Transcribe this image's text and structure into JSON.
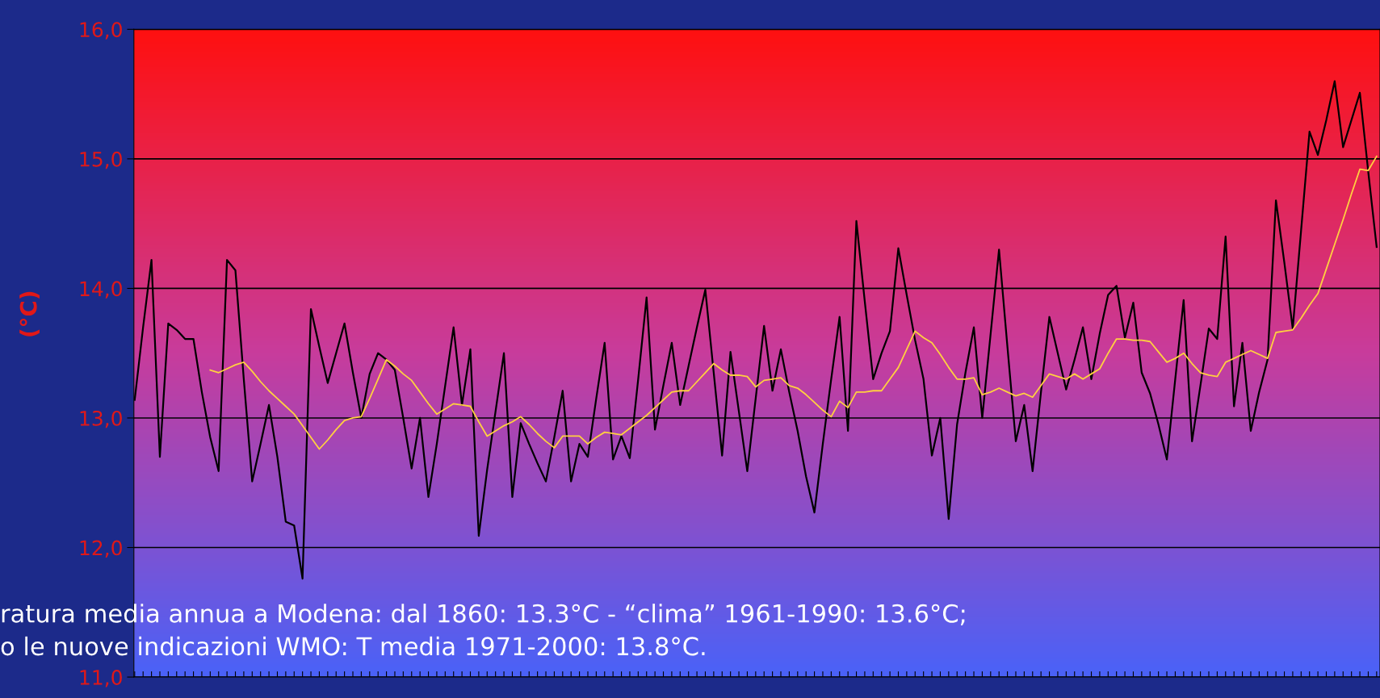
{
  "chart_data": {
    "type": "line",
    "ylabel": "(°C)",
    "categories": [
      null,
      null,
      null,
      null,
      null,
      null,
      null,
      null,
      null,
      null,
      null,
      null,
      null,
      null,
      null,
      null,
      null,
      null,
      null,
      null,
      null,
      null,
      null,
      null,
      null,
      null,
      null,
      null,
      null,
      null,
      null,
      null,
      null,
      null,
      null,
      null,
      null,
      null,
      null,
      null,
      null,
      null,
      null,
      null,
      null,
      null,
      null,
      null,
      null,
      null,
      null,
      null,
      null,
      null,
      null,
      null,
      null,
      null,
      null,
      null,
      null,
      null,
      null,
      null,
      null,
      null,
      null,
      null,
      null,
      null,
      null,
      null,
      null,
      null,
      null,
      null,
      null,
      null,
      null,
      null,
      null,
      null,
      null,
      null,
      null,
      null,
      null,
      null,
      null,
      null,
      null,
      null,
      null,
      null,
      null,
      null,
      null,
      null,
      null,
      null,
      null,
      null,
      null,
      null,
      null,
      null,
      null,
      null,
      null,
      null,
      null,
      null,
      null,
      null,
      null,
      null,
      null,
      null,
      null,
      null,
      null,
      null,
      null,
      null,
      null,
      null,
      null,
      null,
      null,
      null,
      null,
      null,
      null,
      null,
      null,
      null,
      null,
      null,
      null,
      null,
      null,
      null,
      null,
      null,
      null,
      null,
      null,
      null,
      null
    ],
    "series": [
      {
        "color": "#000000",
        "values": [
          13.14,
          13.7,
          14.22,
          12.7,
          13.73,
          13.68,
          13.61,
          13.61,
          13.2,
          12.85,
          12.59,
          14.22,
          14.14,
          13.3,
          12.51,
          12.8,
          13.1,
          12.7,
          12.2,
          12.17,
          11.76,
          13.84,
          13.55,
          13.27,
          13.5,
          13.73,
          13.35,
          13.0,
          13.34,
          13.5,
          13.45,
          13.37,
          13.0,
          12.61,
          13.0,
          12.39,
          12.8,
          13.25,
          13.7,
          13.1,
          13.53,
          12.09,
          12.6,
          13.05,
          13.5,
          12.39,
          12.96,
          12.8,
          12.65,
          12.51,
          12.85,
          13.21,
          12.51,
          12.8,
          12.7,
          13.15,
          13.58,
          12.68,
          12.86,
          12.69,
          13.3,
          13.93,
          12.91,
          13.25,
          13.58,
          13.1,
          13.4,
          13.7,
          13.99,
          13.35,
          12.71,
          13.51,
          13.05,
          12.59,
          13.15,
          13.71,
          13.21,
          13.53,
          13.2,
          12.9,
          12.55,
          12.27,
          12.8,
          13.3,
          13.78,
          12.9,
          14.52,
          13.9,
          13.3,
          13.5,
          13.67,
          14.31,
          13.95,
          13.6,
          13.3,
          12.71,
          13.0,
          12.22,
          12.95,
          13.35,
          13.7,
          13.0,
          13.65,
          14.3,
          13.55,
          12.82,
          13.1,
          12.59,
          13.2,
          13.78,
          13.5,
          13.22,
          13.45,
          13.7,
          13.3,
          13.65,
          13.95,
          14.02,
          13.62,
          13.89,
          13.35,
          13.19,
          12.95,
          12.68,
          13.3,
          13.91,
          12.82,
          13.25,
          13.69,
          13.61,
          14.4,
          13.09,
          13.58,
          12.9,
          13.2,
          13.45,
          14.68,
          14.2,
          13.69,
          14.45,
          15.21,
          15.03,
          15.3,
          15.6,
          15.09,
          15.3,
          15.51,
          14.9,
          14.32
        ]
      },
      {
        "color": "#ffd040",
        "values": [
          null,
          null,
          null,
          null,
          null,
          null,
          null,
          null,
          null,
          13.37,
          13.35,
          13.38,
          13.41,
          13.43,
          13.36,
          13.28,
          13.21,
          13.15,
          13.09,
          13.03,
          12.94,
          12.85,
          12.76,
          12.83,
          12.91,
          12.98,
          13.0,
          13.01,
          13.15,
          13.3,
          13.45,
          13.4,
          13.34,
          13.29,
          13.2,
          13.11,
          13.03,
          13.07,
          13.11,
          13.1,
          13.09,
          12.97,
          12.86,
          12.9,
          12.94,
          12.97,
          13.01,
          12.95,
          12.88,
          12.82,
          12.77,
          12.86,
          12.86,
          12.86,
          12.8,
          12.85,
          12.89,
          12.88,
          12.87,
          12.92,
          12.97,
          13.02,
          13.08,
          13.14,
          13.2,
          13.21,
          13.21,
          13.28,
          13.35,
          13.42,
          13.37,
          13.33,
          13.33,
          13.32,
          13.24,
          13.29,
          13.3,
          13.31,
          13.25,
          13.23,
          13.18,
          13.12,
          13.06,
          13.01,
          13.13,
          13.08,
          13.2,
          13.2,
          13.21,
          13.21,
          13.3,
          13.39,
          13.53,
          13.67,
          13.62,
          13.58,
          13.49,
          13.39,
          13.3,
          13.3,
          13.31,
          13.18,
          13.2,
          13.23,
          13.2,
          13.17,
          13.19,
          13.16,
          13.25,
          13.34,
          13.32,
          13.3,
          13.34,
          13.3,
          13.34,
          13.38,
          13.5,
          13.61,
          13.61,
          13.6,
          13.6,
          13.59,
          13.51,
          13.43,
          13.46,
          13.5,
          13.42,
          13.35,
          13.33,
          13.32,
          13.43,
          13.46,
          13.49,
          13.52,
          13.49,
          13.46,
          13.66,
          13.67,
          13.68,
          13.77,
          13.87,
          13.96,
          14.15,
          14.34,
          14.53,
          14.73,
          14.92,
          14.91,
          15.02
        ]
      }
    ],
    "ylim": [
      11,
      16
    ],
    "yticks": [
      {
        "value": 11,
        "label": "11,0"
      },
      {
        "value": 12,
        "label": "12,0"
      },
      {
        "value": 13,
        "label": "13,0"
      },
      {
        "value": 14,
        "label": "14,0"
      },
      {
        "value": 15,
        "label": "15,0"
      },
      {
        "value": 16,
        "label": "16,0"
      }
    ],
    "tick_labels": "y",
    "grid": "y",
    "marker": "none",
    "line_style": "solid",
    "annotations": [
      "ratura media annua a Modena: dal 1860: 13.3°C - “clima” 1961-1990: 13.6°C;",
      "o le nuove indicazioni WMO: T media 1971-2000: 13.8°C."
    ]
  }
}
